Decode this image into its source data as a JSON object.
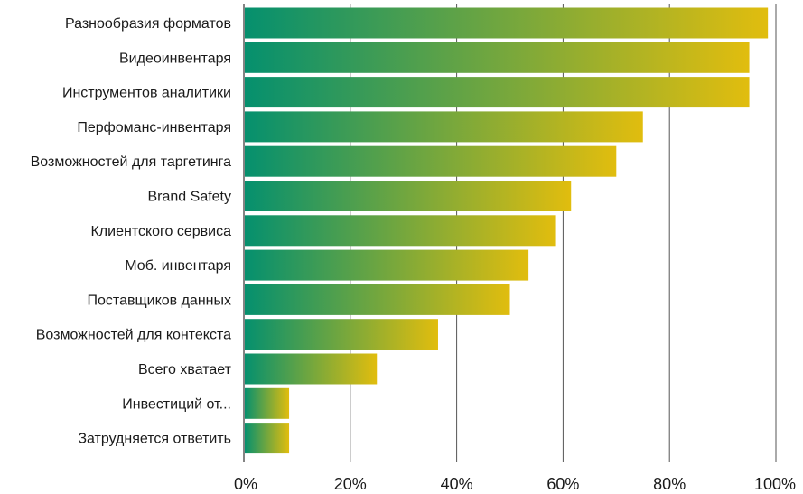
{
  "chart_data": {
    "type": "bar",
    "orientation": "horizontal",
    "title": "",
    "xlabel": "",
    "ylabel": "",
    "categories": [
      "Разнообразия форматов",
      "Видеоинвентаря",
      "Инструментов аналитики",
      "Перфоманс-инвентаря",
      "Возможностей для таргетинга",
      "Brand Safety",
      "Клиентского сервиса",
      "Моб. инвентаря",
      "Поставщиков данных",
      "Возможностей для контекста",
      "Всего хватает",
      "Инвестиций от...",
      "Затрудняется ответить"
    ],
    "values": [
      98.5,
      95,
      95,
      75,
      70,
      61.5,
      58.5,
      53.5,
      50,
      36.5,
      25,
      8.5,
      8.5
    ],
    "value_unit": "%",
    "xlim": [
      0,
      100
    ],
    "x_ticks": [
      0,
      20,
      40,
      60,
      80,
      100
    ],
    "x_tick_labels": [
      "0%",
      "20%",
      "40%",
      "60%",
      "80%",
      "100%"
    ],
    "grid": "vertical",
    "legend": "none",
    "colors": {
      "gradient_start": "#05906e",
      "gradient_end": "#e1bd0e",
      "grid": "#555555",
      "text": "#1a1a1a"
    }
  }
}
